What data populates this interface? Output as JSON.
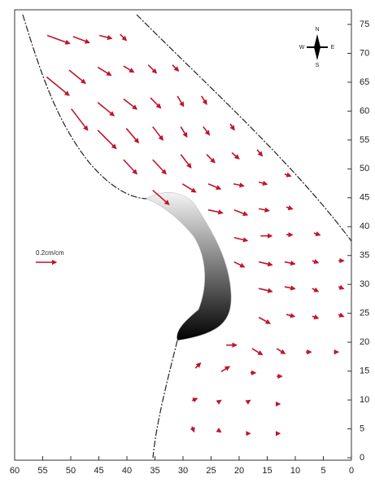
{
  "chart_data": {
    "type": "quiver",
    "color": "#c0142c",
    "annotation": "0.2cm/cm",
    "compass": {
      "n": "N",
      "s": "S",
      "e": "E",
      "w": "W"
    },
    "xlim": [
      60,
      0
    ],
    "ylim": [
      0,
      75
    ],
    "xticks": [
      60,
      55,
      50,
      45,
      40,
      35,
      30,
      25,
      20,
      15,
      10,
      5,
      0
    ],
    "yticks": [
      0,
      5,
      10,
      15,
      20,
      25,
      30,
      35,
      40,
      45,
      50,
      55,
      60,
      65,
      70,
      75
    ],
    "x": [
      54.2,
      49.6,
      44.9,
      41.2,
      50.3,
      45.2,
      40.6,
      36.2,
      31.9,
      54.3,
      45.2,
      40.6,
      35.8,
      31,
      26.7,
      49.9,
      45.2,
      40.1,
      35.4,
      30.4,
      26.4,
      21.6,
      40.6,
      35.4,
      30.4,
      25.8,
      21.3,
      16.8,
      30.1,
      25.5,
      21,
      16.5,
      11.9,
      35.4,
      25.5,
      20.9,
      16.5,
      11.6,
      20.9,
      16.2,
      11.6,
      6.7,
      20.9,
      16.5,
      11.9,
      7,
      2.3,
      16.5,
      11.9,
      7,
      2.3,
      16.5,
      11.6,
      7,
      2.3,
      22.3,
      17.7,
      13.3,
      8.1,
      2.9,
      27.8,
      23.2,
      18,
      13.3,
      28.4,
      23.8,
      18.6,
      13.3,
      28.4,
      23.8,
      18.6,
      13.3
    ],
    "y": [
      73.1,
      72.9,
      73.1,
      73.3,
      67.1,
      67.6,
      67.8,
      68,
      68,
      65.9,
      61.5,
      62.1,
      62.3,
      62.6,
      62.6,
      60.4,
      56.7,
      57,
      57.3,
      57.3,
      57.3,
      57.8,
      51.6,
      51.6,
      52.5,
      52.5,
      52.8,
      53.3,
      47.4,
      47.4,
      47.4,
      47.7,
      49.1,
      46.3,
      42.9,
      42.9,
      43.1,
      43.4,
      38.1,
      38.4,
      38.6,
      38.9,
      33.9,
      33.9,
      33.9,
      34.1,
      34.1,
      29.3,
      29.6,
      29.3,
      29.6,
      24.3,
      24.8,
      24.5,
      24.8,
      19.5,
      18.9,
      18.9,
      18.3,
      18.3,
      15.5,
      14.9,
      14.7,
      14.1,
      9.9,
      9.6,
      9.6,
      9.3,
      5.4,
      4.8,
      4.2,
      4.2
    ],
    "u": [
      0.22,
      0.16,
      0.12,
      0.06,
      0.16,
      0.13,
      0.1,
      0.08,
      0.06,
      0.22,
      0.16,
      0.13,
      0.1,
      0.06,
      0.05,
      0.16,
      0.18,
      0.12,
      0.1,
      0.06,
      0.06,
      0.04,
      0.13,
      0.13,
      0.1,
      0.08,
      0.07,
      0.05,
      0.13,
      0.12,
      0.1,
      0.08,
      0.06,
      0.16,
      0.14,
      0.13,
      0.1,
      0.06,
      0.13,
      0.11,
      0.06,
      0.06,
      0.1,
      0.13,
      0.1,
      0.06,
      0.05,
      0.13,
      0.1,
      0.06,
      0.05,
      0.11,
      0.08,
      0.06,
      0.05,
      0.1,
      0.1,
      0.08,
      0.05,
      0.03,
      0.05,
      0.08,
      0.05,
      0.05,
      0.05,
      0.03,
      0.03,
      0.03,
      0.02,
      0.03,
      0.03,
      0.03
    ],
    "v": [
      -0.08,
      -0.06,
      -0.03,
      -0.06,
      -0.13,
      -0.08,
      -0.06,
      -0.08,
      -0.06,
      -0.18,
      -0.13,
      -0.1,
      -0.1,
      -0.1,
      -0.08,
      -0.21,
      -0.18,
      -0.14,
      -0.13,
      -0.1,
      -0.08,
      -0.06,
      -0.14,
      -0.14,
      -0.13,
      -0.08,
      -0.06,
      -0.06,
      -0.08,
      -0.05,
      -0.02,
      -0.02,
      -0.02,
      -0.14,
      -0.03,
      -0.05,
      -0.02,
      -0.02,
      -0.03,
      0,
      0,
      -0.02,
      -0.05,
      -0.03,
      -0.02,
      -0.02,
      0,
      -0.03,
      -0.02,
      -0.03,
      -0.02,
      -0.06,
      -0.02,
      -0.02,
      -0.02,
      0,
      -0.06,
      -0.05,
      0,
      0,
      0.05,
      0.05,
      0,
      0,
      0.02,
      0.02,
      0.02,
      0,
      -0.05,
      -0.02,
      0,
      0
    ]
  }
}
